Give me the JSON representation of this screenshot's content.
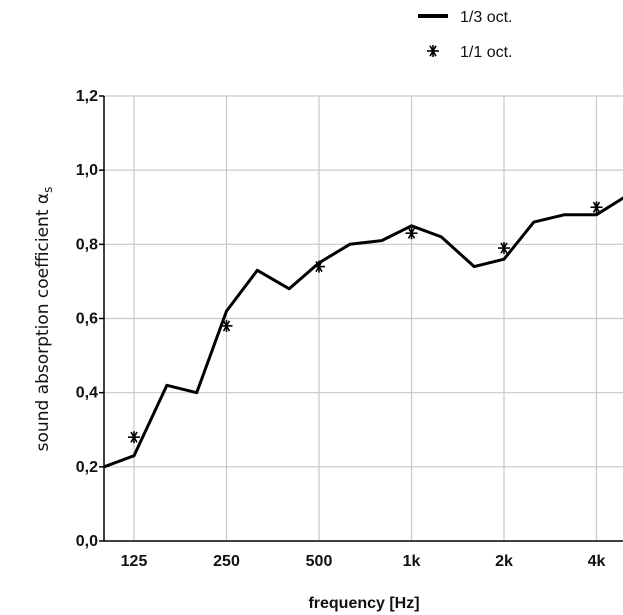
{
  "chart_data": {
    "type": "line",
    "title": "",
    "xlabel": "frequency [Hz]",
    "ylabel": "sound absorption coefficient α",
    "ylabel_subscript": "s",
    "ylim": [
      0,
      1.2
    ],
    "y_ticks": [
      "0,0",
      "0,2",
      "0,4",
      "0,6",
      "0,8",
      "1,0",
      "1,2"
    ],
    "x_scale": "log",
    "x_ticks": [
      {
        "value": 125,
        "label": "125"
      },
      {
        "value": 250,
        "label": "250"
      },
      {
        "value": 500,
        "label": "500"
      },
      {
        "value": 1000,
        "label": "1k"
      },
      {
        "value": 2000,
        "label": "2k"
      },
      {
        "value": 4000,
        "label": "4k"
      }
    ],
    "grid": true,
    "legend_position": "top-right",
    "series": [
      {
        "name": "1/3 oct.",
        "style": "line",
        "color": "#000000",
        "x": [
          100,
          125,
          160,
          200,
          250,
          315,
          400,
          500,
          630,
          800,
          1000,
          1250,
          1600,
          2000,
          2500,
          3150,
          4000,
          5000
        ],
        "y": [
          0.2,
          0.23,
          0.42,
          0.4,
          0.62,
          0.73,
          0.68,
          0.75,
          0.8,
          0.81,
          0.85,
          0.82,
          0.74,
          0.76,
          0.86,
          0.88,
          0.88,
          0.93
        ]
      },
      {
        "name": "1/1 oct.",
        "style": "marker",
        "marker": "asterisk",
        "color": "#000000",
        "x": [
          125,
          250,
          500,
          1000,
          2000,
          4000
        ],
        "y": [
          0.28,
          0.58,
          0.74,
          0.83,
          0.79,
          0.9
        ]
      }
    ]
  }
}
